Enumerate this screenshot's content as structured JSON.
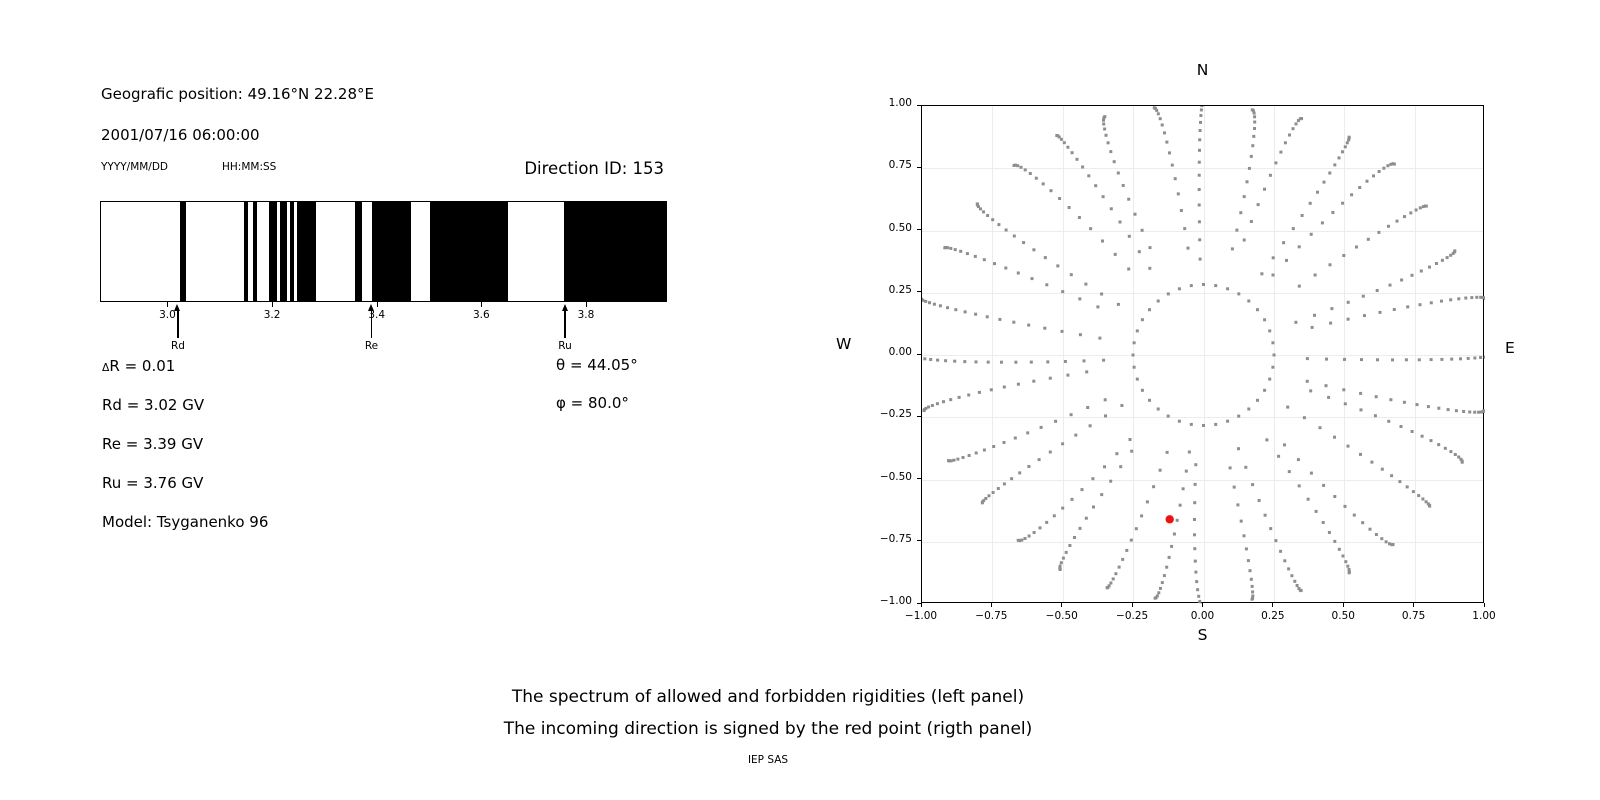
{
  "header": {
    "geo_position": "Geografic position: 49.16°N 22.28°E",
    "datetime": "2001/07/16 06:00:00",
    "date_format_hint": "YYYY/MM/DD",
    "time_format_hint": "HH:MM:SS",
    "direction_id": "Direction ID: 153"
  },
  "params": {
    "left": [
      {
        "prefix": "Δ",
        "text": "R = 0.01"
      },
      {
        "prefix": "",
        "text": "Rd = 3.02 GV"
      },
      {
        "prefix": "",
        "text": "Re = 3.39 GV"
      },
      {
        "prefix": "",
        "text": "Ru = 3.76 GV"
      },
      {
        "prefix": "",
        "text": "Model: Tsyganenko 96"
      }
    ],
    "right": [
      {
        "text": "θ = 44.05°"
      },
      {
        "text": "φ = 80.0°"
      }
    ]
  },
  "captions": {
    "line1": "The spectrum of allowed and forbidden rigidities (left panel)",
    "line2": "The incoming direction is signed by the red point (rigth panel)",
    "credit": "IEP SAS"
  },
  "chart_data": [
    {
      "panel": "left",
      "type": "spectrum-barcode",
      "description": "Penumbra: allowed (white) and forbidden (black) rigidity bands",
      "x_unit": "GV",
      "x_min": 2.871,
      "x_max": 3.955,
      "x_ticks": [
        {
          "value": 3.0,
          "label": "3.0"
        },
        {
          "value": 3.2,
          "label": "3.2"
        },
        {
          "value": 3.4,
          "label": "3.4"
        },
        {
          "value": 3.6,
          "label": "3.6"
        },
        {
          "value": 3.8,
          "label": "3.8"
        }
      ],
      "forbidden_bands_GV": [
        [
          3.022,
          3.034
        ],
        [
          3.145,
          3.153
        ],
        [
          3.163,
          3.171
        ],
        [
          3.194,
          3.209
        ],
        [
          3.214,
          3.228
        ],
        [
          3.234,
          3.241
        ],
        [
          3.247,
          3.284
        ],
        [
          3.359,
          3.372
        ],
        [
          3.39,
          3.465
        ],
        [
          3.502,
          3.652
        ],
        [
          3.76,
          3.955
        ]
      ],
      "markers": [
        {
          "name": "Rd",
          "rigidity": 3.02
        },
        {
          "name": "Re",
          "rigidity": 3.39
        },
        {
          "name": "Ru",
          "rigidity": 3.76
        }
      ],
      "band_color": "#000000",
      "background": "#ffffff"
    },
    {
      "panel": "right",
      "type": "scatter",
      "description": "Incoming direction map: gray dot spokes of asymptotic directions, red dot marks the incoming direction",
      "xlim": [
        -1,
        1
      ],
      "ylim": [
        -1,
        1
      ],
      "x_tick_labels": [
        "−1.00",
        "−0.75",
        "−0.50",
        "−0.25",
        "0.00",
        "0.25",
        "0.50",
        "0.75",
        "1.00"
      ],
      "y_tick_labels": [
        "1.00",
        "0.75",
        "0.50",
        "0.25",
        "0.00",
        "−0.25",
        "−0.50",
        "−0.75",
        "−1.00"
      ],
      "compass": {
        "top": "N",
        "bottom": "S",
        "left": "W",
        "right": "E"
      },
      "grid": true,
      "dot_color": "#8e8e8e",
      "dot_size_px": 3,
      "red_point": {
        "x": -0.12,
        "y": -0.66,
        "color": "#ee1111",
        "radius_px": 4.2
      },
      "ring": {
        "radius_px": 70.5,
        "dot_count": 36
      },
      "spokes": {
        "count": 32,
        "angle_step_deg": 11.25,
        "tip_radius_px": [
          290,
          288,
          272,
          268,
          270,
          262,
          256,
          250,
          255,
          252,
          258,
          264,
          268,
          272,
          280,
          288,
          292,
          285,
          276,
          266,
          262,
          258,
          252,
          248,
          253,
          249,
          255,
          262,
          268,
          272,
          280,
          286
        ],
        "inner_radius_px": [
          104,
          112,
          98,
          118,
          106,
          100,
          122,
          110,
          96,
          108,
          120,
          102,
          114,
          99,
          116,
          105,
          100,
          118,
          108,
          96,
          112,
          120,
          104,
          98,
          110,
          116,
          100,
          106,
          121,
          99,
          113,
          107
        ],
        "curve_deg": [
          -2,
          3,
          -3,
          2,
          4,
          -2,
          3,
          -4,
          2,
          -3,
          4,
          -2,
          -4,
          3,
          -2,
          2,
          3,
          -3,
          2,
          -2,
          4,
          -3,
          2,
          3,
          -4,
          2,
          -2,
          3,
          -3,
          2,
          4,
          -3
        ],
        "dot_spacing_px": 9.5,
        "tip_density_power": 2.0
      }
    }
  ]
}
